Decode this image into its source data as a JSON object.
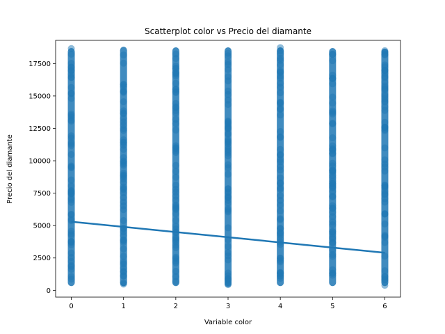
{
  "chart_data": {
    "type": "scatter",
    "title": "Scatterplot color vs Precio del diamante",
    "xlabel": "Variable color",
    "ylabel": "Precio del diamante",
    "xlim": [
      -0.3,
      6.3
    ],
    "ylim": [
      -520,
      19290
    ],
    "x_ticks": [
      0,
      1,
      2,
      3,
      4,
      5,
      6
    ],
    "y_ticks": [
      0,
      2500,
      5000,
      7500,
      10000,
      12500,
      15000,
      17500
    ],
    "grid": false,
    "legend": "none",
    "point_color": "#1f77b4",
    "series": [
      {
        "columns": [
          {
            "x": 0,
            "y_min": 326,
            "y_max": 18700
          },
          {
            "x": 1,
            "y_min": 326,
            "y_max": 18800
          },
          {
            "x": 2,
            "y_min": 326,
            "y_max": 18750
          },
          {
            "x": 3,
            "y_min": 326,
            "y_max": 18750
          },
          {
            "x": 4,
            "y_min": 326,
            "y_max": 18750
          },
          {
            "x": 5,
            "y_min": 326,
            "y_max": 18700
          },
          {
            "x": 6,
            "y_min": 326,
            "y_max": 18650
          }
        ]
      }
    ],
    "trend_line": {
      "x": [
        0,
        6
      ],
      "y": [
        5300,
        2900
      ]
    }
  }
}
